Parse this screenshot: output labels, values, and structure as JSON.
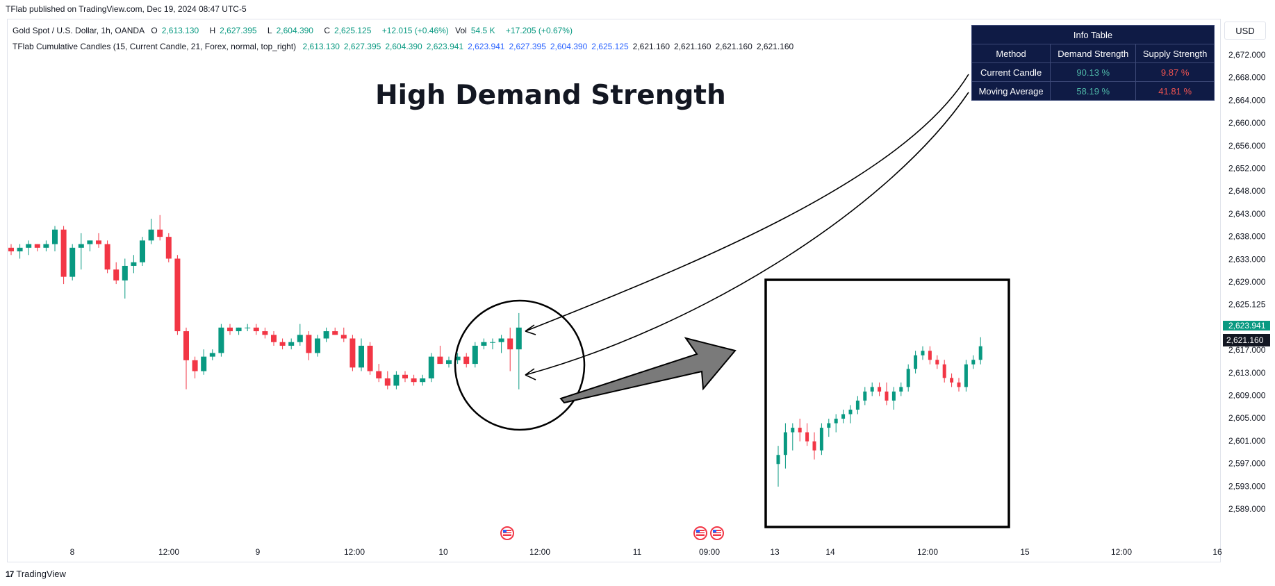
{
  "header": {
    "published": "TFlab published on TradingView.com, Dec 19, 2024 08:47 UTC-5"
  },
  "legend": {
    "symbol": "Gold Spot / U.S. Dollar, 1h, OANDA",
    "o_label": "O",
    "o_value": "2,613.130",
    "h_label": "H",
    "h_value": "2,627.395",
    "l_label": "L",
    "l_value": "2,604.390",
    "c_label": "C",
    "c_value": "2,625.125",
    "change": "+12.015 (+0.46%)",
    "vol_label": "Vol",
    "vol_value": "54.5 K",
    "vol_change": "+17.205 (+0.67%)",
    "indicator": "TFlab Cumulative Candles (15, Current Candle, 21, Forex, normal, top_right)",
    "ind_green": [
      "2,613.130",
      "2,627.395",
      "2,604.390",
      "2,623.941"
    ],
    "ind_blue": [
      "2,623.941",
      "2,627.395",
      "2,604.390",
      "2,625.125"
    ],
    "ind_black": [
      "2,621.160",
      "2,621.160",
      "2,621.160",
      "2,621.160"
    ]
  },
  "currency": "USD",
  "headline": "High Demand Strength",
  "info_table": {
    "title": "Info Table",
    "headers": [
      "Method",
      "Demand Strength",
      "Supply Strength"
    ],
    "rows": [
      {
        "method": "Current Candle",
        "demand": "90.13 %",
        "supply": "9.87 %"
      },
      {
        "method": "Moving Average",
        "demand": "58.19 %",
        "supply": "41.81 %"
      }
    ]
  },
  "footer": {
    "brand": "TradingView",
    "logo": "tradingview-logo-icon"
  },
  "colors": {
    "up": "#089981",
    "down": "#f23645",
    "price_tag": "#089981",
    "black_tag": "#131722"
  },
  "chart_data": [
    {
      "type": "candlestick",
      "name": "main",
      "y_ticks": [
        "2,672.000",
        "2,668.000",
        "2,664.000",
        "2,660.000",
        "2,656.000",
        "2,652.000",
        "2,648.000",
        "2,643.000",
        "2,638.000",
        "2,633.000",
        "2,629.000",
        "2,625.125",
        "2,621.160",
        "2,617.000",
        "2,613.000",
        "2,609.000",
        "2,605.000",
        "2,601.000",
        "2,597.000",
        "2,593.000",
        "2,589.000"
      ],
      "price_tag_green": "2,623.941",
      "price_tag_black": "2,621.160",
      "x_ticks": [
        "8",
        "12:00",
        "9",
        "12:00",
        "10",
        "12:00",
        "11",
        "09:00",
        "13",
        "14",
        "12:00",
        "15",
        "12:00",
        "16"
      ],
      "ylim": [
        2586,
        2674
      ],
      "candles": [
        [
          2644,
          2645,
          2642,
          2643
        ],
        [
          2643,
          2645,
          2641,
          2644
        ],
        [
          2644,
          2646,
          2642,
          2645
        ],
        [
          2645,
          2645,
          2643,
          2644
        ],
        [
          2644,
          2646,
          2643,
          2645
        ],
        [
          2645,
          2650,
          2643,
          2649
        ],
        [
          2649,
          2650,
          2634,
          2636
        ],
        [
          2636,
          2645,
          2635,
          2644
        ],
        [
          2644,
          2648,
          2638,
          2645
        ],
        [
          2645,
          2646,
          2643,
          2646
        ],
        [
          2646,
          2648,
          2644,
          2645
        ],
        [
          2645,
          2646,
          2637,
          2638
        ],
        [
          2638,
          2640,
          2634,
          2635
        ],
        [
          2635,
          2641,
          2630,
          2639
        ],
        [
          2639,
          2642,
          2637,
          2640
        ],
        [
          2640,
          2647,
          2639,
          2646
        ],
        [
          2646,
          2652,
          2645,
          2649
        ],
        [
          2649,
          2653,
          2646,
          2647
        ],
        [
          2647,
          2648,
          2640,
          2641
        ],
        [
          2641,
          2642,
          2620,
          2621
        ],
        [
          2621,
          2622,
          2605,
          2613
        ],
        [
          2613,
          2614,
          2608,
          2610
        ],
        [
          2610,
          2616,
          2609,
          2614
        ],
        [
          2614,
          2616,
          2613,
          2615
        ],
        [
          2615,
          2623,
          2614,
          2622
        ],
        [
          2622,
          2623,
          2620,
          2621
        ],
        [
          2621,
          2622,
          2620,
          2622
        ],
        [
          2622,
          2623,
          2621,
          2622
        ],
        [
          2622,
          2623,
          2620,
          2621
        ],
        [
          2621,
          2622,
          2619,
          2620
        ],
        [
          2620,
          2621,
          2617,
          2618
        ],
        [
          2618,
          2619,
          2616,
          2617
        ],
        [
          2617,
          2619,
          2616,
          2618
        ],
        [
          2618,
          2623,
          2617,
          2620
        ],
        [
          2620,
          2621,
          2613,
          2615
        ],
        [
          2615,
          2620,
          2614,
          2619
        ],
        [
          2619,
          2622,
          2618,
          2621
        ],
        [
          2621,
          2622,
          2620,
          2620
        ],
        [
          2620,
          2622,
          2618,
          2619
        ],
        [
          2619,
          2620,
          2610,
          2611
        ],
        [
          2611,
          2619,
          2610,
          2617
        ],
        [
          2617,
          2618,
          2609,
          2610
        ],
        [
          2610,
          2612,
          2607,
          2608
        ],
        [
          2608,
          2610,
          2605,
          2606
        ],
        [
          2606,
          2610,
          2605,
          2609
        ],
        [
          2609,
          2610,
          2607,
          2608
        ],
        [
          2608,
          2609,
          2606,
          2607
        ],
        [
          2607,
          2609,
          2606,
          2608
        ],
        [
          2608,
          2615,
          2607,
          2614
        ],
        [
          2614,
          2617,
          2612,
          2612
        ],
        [
          2612,
          2614,
          2611,
          2613
        ],
        [
          2613,
          2615,
          2612,
          2614
        ],
        [
          2614,
          2615,
          2611,
          2612
        ],
        [
          2612,
          2618,
          2611,
          2617
        ],
        [
          2617,
          2619,
          2616,
          2618
        ],
        [
          2618,
          2619,
          2616,
          2618
        ],
        [
          2618,
          2620,
          2615,
          2619
        ],
        [
          2619,
          2622,
          2610,
          2616
        ],
        [
          2616,
          2626,
          2605,
          2622
        ]
      ]
    },
    {
      "type": "candlestick",
      "name": "inset",
      "ylim": [
        2586,
        2632
      ],
      "candles": [
        [
          2597,
          2601,
          2592,
          2599
        ],
        [
          2599,
          2606,
          2596,
          2604
        ],
        [
          2604,
          2606,
          2600,
          2605
        ],
        [
          2605,
          2607,
          2602,
          2604
        ],
        [
          2604,
          2606,
          2601,
          2602
        ],
        [
          2602,
          2604,
          2598,
          2600
        ],
        [
          2600,
          2606,
          2599,
          2605
        ],
        [
          2605,
          2607,
          2603,
          2606
        ],
        [
          2606,
          2608,
          2604,
          2607
        ],
        [
          2607,
          2609,
          2606,
          2608
        ],
        [
          2608,
          2610,
          2606,
          2609
        ],
        [
          2609,
          2612,
          2608,
          2611
        ],
        [
          2611,
          2614,
          2610,
          2613
        ],
        [
          2613,
          2615,
          2612,
          2614
        ],
        [
          2614,
          2615,
          2612,
          2613
        ],
        [
          2613,
          2615,
          2610,
          2611
        ],
        [
          2611,
          2614,
          2609,
          2613
        ],
        [
          2613,
          2615,
          2612,
          2614
        ],
        [
          2614,
          2619,
          2613,
          2618
        ],
        [
          2618,
          2622,
          2617,
          2621
        ],
        [
          2621,
          2623,
          2620,
          2622
        ],
        [
          2622,
          2623,
          2619,
          2620
        ],
        [
          2620,
          2621,
          2618,
          2619
        ],
        [
          2619,
          2620,
          2615,
          2616
        ],
        [
          2616,
          2617,
          2614,
          2615
        ],
        [
          2615,
          2616,
          2613,
          2614
        ],
        [
          2614,
          2620,
          2613,
          2619
        ],
        [
          2619,
          2621,
          2618,
          2620
        ],
        [
          2620,
          2625,
          2619,
          2623
        ]
      ]
    }
  ]
}
